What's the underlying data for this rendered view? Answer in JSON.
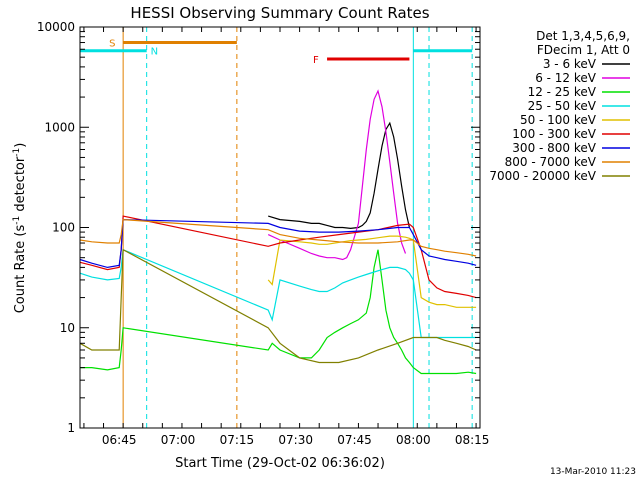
{
  "chart_data": {
    "type": "line",
    "title": "HESSI Observing Summary Count Rates",
    "xlabel": "Start Time (29-Oct-02 06:36:02)",
    "ylabel_main": "Count Rate (s",
    "ylabel_sup1": "-1",
    "ylabel_mid": " detector",
    "ylabel_sup2": "-1",
    "ylabel_end": ")",
    "yscale": "log",
    "xlim_min": [
      -1,
      101
    ],
    "ylim": [
      1,
      10000
    ],
    "xticks": [
      {
        "v": 9,
        "label": "06:45"
      },
      {
        "v": 24,
        "label": "07:00"
      },
      {
        "v": 39,
        "label": "07:15"
      },
      {
        "v": 54,
        "label": "07:30"
      },
      {
        "v": 69,
        "label": "07:45"
      },
      {
        "v": 84,
        "label": "08:00"
      },
      {
        "v": 99,
        "label": "08:15"
      }
    ],
    "yticks": [
      {
        "v": 1,
        "label": "1"
      },
      {
        "v": 10,
        "label": "10"
      },
      {
        "v": 100,
        "label": "100"
      },
      {
        "v": 1000,
        "label": "1000"
      },
      {
        "v": 10000,
        "label": "10000"
      }
    ],
    "legend_header": [
      "Det 1,3,4,5,6,9,",
      "FDecim 1, Att 0"
    ],
    "legend_position": "right",
    "timestamp": "13-Mar-2010 11:23",
    "series": [
      {
        "name": "3 - 6 keV",
        "color": "#000000",
        "x": [
          47,
          50,
          55,
          58,
          60,
          62,
          64,
          66,
          68,
          70,
          71,
          72,
          73,
          74,
          75,
          76,
          77,
          78,
          79,
          80,
          81,
          82,
          83
        ],
        "y": [
          130,
          120,
          115,
          110,
          110,
          105,
          100,
          100,
          98,
          100,
          105,
          115,
          140,
          220,
          380,
          650,
          950,
          1100,
          800,
          480,
          260,
          150,
          100
        ]
      },
      {
        "name": "6 - 12 keV",
        "color": "#e000e0",
        "x": [
          47,
          50,
          55,
          58,
          60,
          62,
          64,
          66,
          67,
          68,
          70,
          71,
          72,
          73,
          74,
          75,
          76,
          77,
          78,
          79,
          80,
          81,
          82
        ],
        "y": [
          85,
          75,
          62,
          55,
          52,
          50,
          50,
          48,
          50,
          60,
          110,
          260,
          600,
          1200,
          1900,
          2300,
          1600,
          900,
          450,
          220,
          110,
          70,
          55
        ]
      },
      {
        "name": "12 - 25 keV",
        "color": "#00e000",
        "x": [
          -1,
          2,
          6,
          9,
          9.5,
          10,
          47,
          48,
          50,
          55,
          58,
          60,
          62,
          64,
          66,
          68,
          70,
          72,
          73,
          74,
          75,
          76,
          77,
          78,
          79,
          80,
          81,
          82,
          83,
          84,
          86,
          88,
          90,
          92,
          95,
          98,
          100
        ],
        "y": [
          4,
          4,
          3.8,
          4,
          6,
          10,
          6,
          7,
          6,
          5,
          5,
          6,
          8,
          9,
          10,
          11,
          12,
          14,
          20,
          40,
          60,
          30,
          15,
          10,
          8,
          7,
          6,
          5,
          4.5,
          4,
          3.5,
          3.5,
          3.5,
          3.5,
          3.5,
          3.6,
          3.5
        ]
      },
      {
        "name": "25 - 50 keV",
        "color": "#00e0e0",
        "x": [
          -1,
          2,
          6,
          9,
          9.5,
          10,
          47,
          48,
          50,
          55,
          58,
          60,
          62,
          64,
          66,
          68,
          70,
          72,
          74,
          76,
          78,
          80,
          82,
          83,
          84,
          86,
          88,
          90,
          92,
          95,
          98,
          100
        ],
        "y": [
          35,
          32,
          30,
          31,
          40,
          60,
          15,
          12,
          30,
          26,
          24,
          23,
          23,
          25,
          28,
          30,
          32,
          34,
          36,
          38,
          40,
          40,
          38,
          35,
          30,
          8,
          8,
          8,
          8,
          8,
          8,
          8
        ]
      },
      {
        "name": "50 - 100 keV",
        "color": "#e0c000",
        "x": [
          47,
          48,
          50,
          55,
          58,
          60,
          62,
          64,
          66,
          68,
          70,
          72,
          74,
          76,
          78,
          80,
          82,
          83,
          84,
          86,
          88,
          90,
          92,
          95,
          98,
          100
        ],
        "y": [
          30,
          27,
          75,
          72,
          70,
          68,
          68,
          70,
          72,
          74,
          75,
          76,
          78,
          80,
          82,
          82,
          80,
          78,
          75,
          20,
          18,
          17,
          17,
          16,
          16,
          16
        ]
      },
      {
        "name": "100 - 300 keV",
        "color": "#e00000",
        "x": [
          -1,
          2,
          6,
          9,
          9.5,
          10,
          47,
          50,
          55,
          60,
          65,
          70,
          75,
          80,
          83,
          84,
          86,
          88,
          90,
          92,
          95,
          98,
          100
        ],
        "y": [
          45,
          42,
          38,
          40,
          60,
          130,
          65,
          70,
          75,
          80,
          85,
          90,
          95,
          105,
          108,
          100,
          60,
          30,
          25,
          23,
          22,
          21,
          20
        ]
      },
      {
        "name": "300 - 800 keV",
        "color": "#0000e0",
        "x": [
          -1,
          2,
          6,
          9,
          9.5,
          10,
          47,
          50,
          55,
          60,
          65,
          70,
          75,
          80,
          83,
          84,
          86,
          88,
          90,
          92,
          95,
          98,
          100
        ],
        "y": [
          48,
          44,
          40,
          42,
          60,
          120,
          110,
          100,
          92,
          90,
          90,
          92,
          95,
          100,
          100,
          85,
          60,
          52,
          50,
          48,
          46,
          44,
          42
        ]
      },
      {
        "name": "800 - 7000 keV",
        "color": "#e08000",
        "x": [
          -1,
          2,
          6,
          9,
          9.5,
          10,
          47,
          50,
          55,
          60,
          65,
          70,
          75,
          80,
          83,
          84,
          86,
          88,
          90,
          92,
          95,
          98,
          100
        ],
        "y": [
          75,
          72,
          70,
          70,
          85,
          120,
          95,
          85,
          78,
          75,
          72,
          70,
          70,
          72,
          75,
          75,
          65,
          62,
          60,
          58,
          56,
          54,
          52
        ]
      },
      {
        "name": "7000 - 20000 keV",
        "color": "#808000",
        "x": [
          -1,
          2,
          6,
          9,
          9.5,
          10,
          47,
          50,
          55,
          60,
          65,
          70,
          75,
          80,
          84,
          86,
          88,
          90,
          92,
          95,
          98,
          100
        ],
        "y": [
          7,
          6,
          6,
          6,
          20,
          60,
          10,
          7,
          5,
          4.5,
          4.5,
          5,
          6,
          7,
          8,
          8,
          8,
          8,
          7.5,
          7,
          6.5,
          6
        ]
      }
    ],
    "flags": [
      {
        "label": "S",
        "color": "#e08000",
        "x0": 10,
        "x1": 39,
        "y": 7000
      },
      {
        "label": "N",
        "color": "#00e0e0",
        "x0": -1,
        "x1": 16,
        "y": 5800
      },
      {
        "label": "N",
        "color": "#00e0e0",
        "x0": 84,
        "x1": 99,
        "y": 5800
      },
      {
        "label": "F",
        "color": "#e00000",
        "x0": 62,
        "x1": 83,
        "y": 4800
      }
    ],
    "flag_labels": [
      {
        "text": "S",
        "color": "#e08000"
      },
      {
        "text": "N",
        "color": "#00e0e0"
      },
      {
        "text": "F",
        "color": "#e00000"
      }
    ],
    "vlines": [
      {
        "x": 10,
        "color": "#e08000",
        "dash": false
      },
      {
        "x": 16,
        "color": "#00e0e0",
        "dash": true
      },
      {
        "x": 39,
        "color": "#e08000",
        "dash": true
      },
      {
        "x": 84,
        "color": "#00e0e0",
        "dash": false
      },
      {
        "x": 88,
        "color": "#00e0e0",
        "dash": true
      },
      {
        "x": 99,
        "color": "#00e0e0",
        "dash": true
      }
    ]
  }
}
